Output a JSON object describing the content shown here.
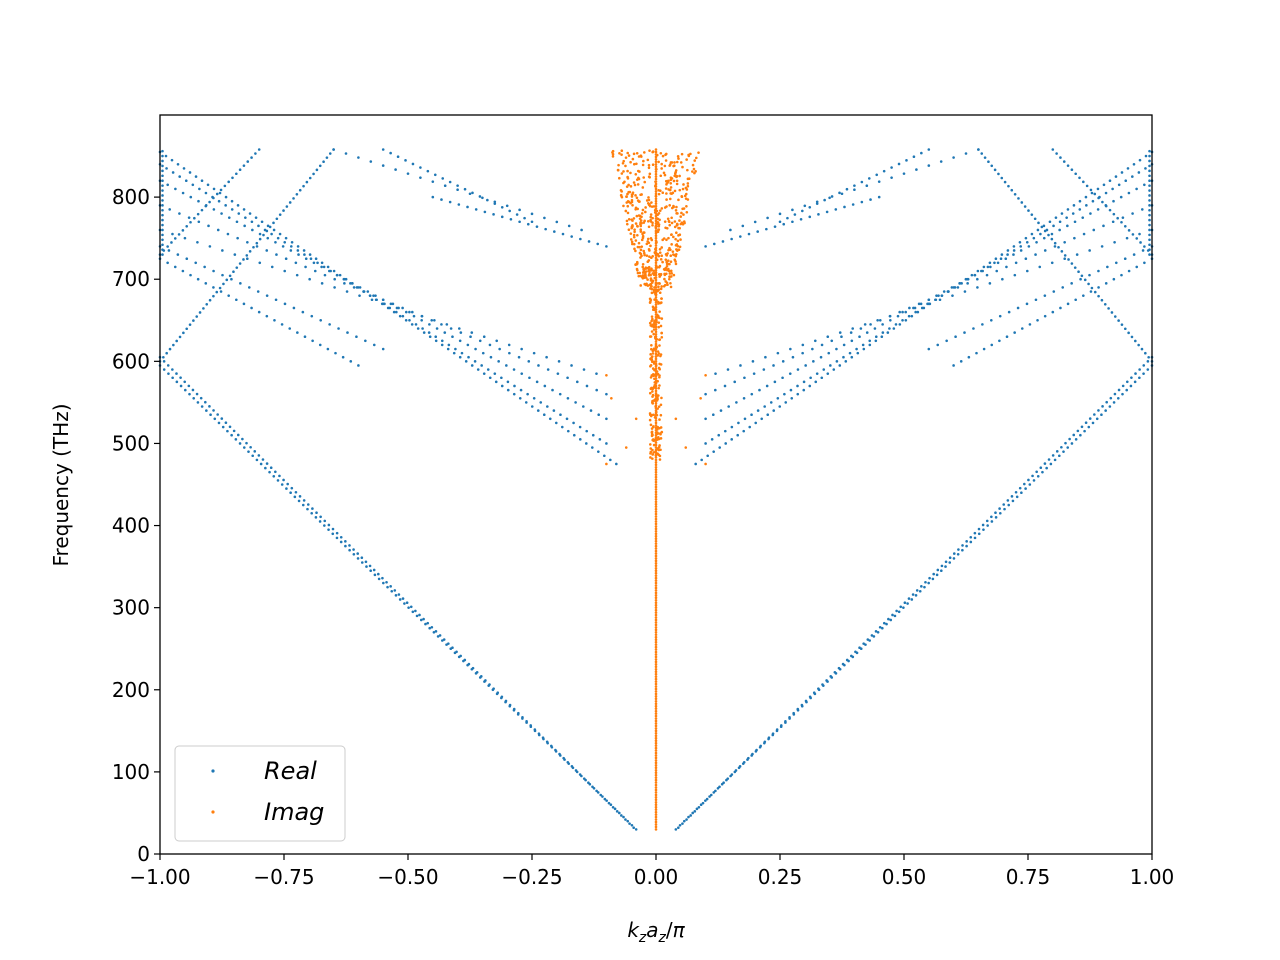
{
  "chart_data": {
    "type": "scatter",
    "title": "",
    "xlabel": "k_z a_z / π",
    "ylabel": "Frequency (THz)",
    "xlim": [
      -1.0,
      1.0
    ],
    "ylim": [
      0,
      900
    ],
    "x_ticks": [
      "−1.00",
      "−0.75",
      "−0.50",
      "−0.25",
      "0.00",
      "0.25",
      "0.50",
      "0.75",
      "1.00"
    ],
    "y_ticks": [
      "0",
      "100",
      "200",
      "300",
      "400",
      "500",
      "600",
      "700",
      "800"
    ],
    "grid": false,
    "legend_position": "lower-left",
    "series": [
      {
        "name": "Real",
        "color": "#1f77b4",
        "description": "band branches vs normalized wavevector",
        "bands": [
          {
            "x0": 0.04,
            "y0": 30,
            "x1": 1.0,
            "y1": 595
          },
          {
            "x0": 0.045,
            "y0": 32,
            "x1": 1.0,
            "y1": 605
          },
          {
            "x0": 0.08,
            "y0": 475,
            "x1": 1.0,
            "y1": 855
          },
          {
            "x0": 0.1,
            "y0": 500,
            "x1": 1.0,
            "y1": 840
          },
          {
            "x0": 0.1,
            "y0": 530,
            "x1": 1.0,
            "y1": 820
          },
          {
            "x0": 0.1,
            "y0": 560,
            "x1": 1.0,
            "y1": 790
          },
          {
            "x0": 0.12,
            "y0": 585,
            "x1": 1.0,
            "y1": 760
          },
          {
            "x0": 0.6,
            "y0": 595,
            "x1": 1.0,
            "y1": 725
          },
          {
            "x0": 0.55,
            "y0": 615,
            "x1": 1.0,
            "y1": 740
          },
          {
            "x0": 0.15,
            "y0": 760,
            "x1": 0.65,
            "y1": 858
          },
          {
            "x0": 0.25,
            "y0": 770,
            "x1": 0.55,
            "y1": 858
          },
          {
            "x0": 0.1,
            "y0": 740,
            "x1": 0.45,
            "y1": 800
          },
          {
            "x0": 0.65,
            "y0": 858,
            "x1": 1.0,
            "y1": 600
          },
          {
            "x0": 0.8,
            "y0": 858,
            "x1": 1.0,
            "y1": 730
          }
        ]
      },
      {
        "name": "Imag",
        "color": "#ff7f0e",
        "description": "imaginary branches near k=0",
        "stem_x": 0.0,
        "stem_ylim": [
          30,
          858
        ],
        "cloud_ylim": [
          690,
          858
        ],
        "cloud_xlim": [
          -0.09,
          0.09
        ]
      }
    ]
  },
  "legend": {
    "real_label": "Real",
    "imag_label": "Imag"
  }
}
